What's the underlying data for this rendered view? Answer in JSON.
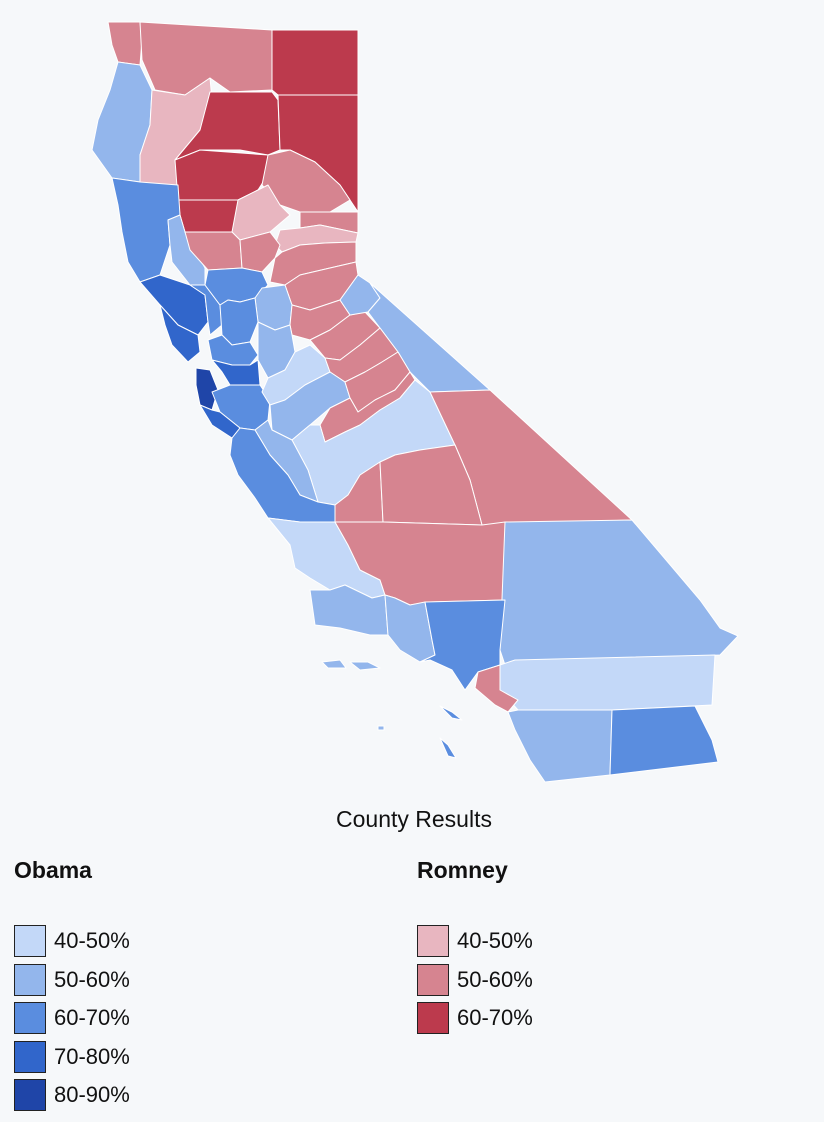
{
  "caption": "County Results",
  "colors": {
    "obama_40_50": "#c3d8f8",
    "obama_50_60": "#93b6ec",
    "obama_60_70": "#5a8ddf",
    "obama_70_80": "#3166cb",
    "obama_80_90": "#1f45a8",
    "romney_40_50": "#e8b6c0",
    "romney_50_60": "#d68490",
    "romney_60_70": "#bc3a4d"
  },
  "legend": {
    "obama": {
      "title": "Obama",
      "items": [
        {
          "label": "40-50%",
          "color": "#c3d8f8"
        },
        {
          "label": "50-60%",
          "color": "#93b6ec"
        },
        {
          "label": "60-70%",
          "color": "#5a8ddf"
        },
        {
          "label": "70-80%",
          "color": "#3166cb"
        },
        {
          "label": "80-90%",
          "color": "#1f45a8"
        }
      ]
    },
    "romney": {
      "title": "Romney",
      "items": [
        {
          "label": "40-50%",
          "color": "#e8b6c0"
        },
        {
          "label": "50-60%",
          "color": "#d68490"
        },
        {
          "label": "60-70%",
          "color": "#bc3a4d"
        }
      ]
    }
  }
}
